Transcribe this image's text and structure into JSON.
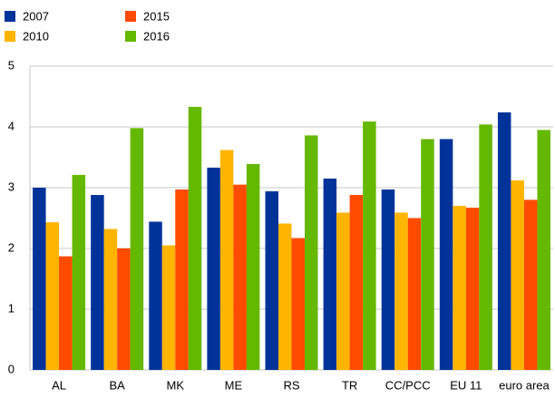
{
  "chart_data": {
    "type": "bar",
    "categories": [
      "AL",
      "BA",
      "MK",
      "ME",
      "RS",
      "TR",
      "CC/PCC",
      "EU 11",
      "euro area"
    ],
    "series": [
      {
        "name": "2007",
        "color": "#003399",
        "values": [
          3.0,
          2.88,
          2.44,
          3.33,
          2.94,
          3.15,
          2.97,
          3.8,
          4.24
        ]
      },
      {
        "name": "2010",
        "color": "#ffb400",
        "values": [
          2.43,
          2.32,
          2.05,
          3.62,
          2.41,
          2.59,
          2.59,
          2.7,
          3.12
        ]
      },
      {
        "name": "2015",
        "color": "#ff4b00",
        "values": [
          1.87,
          2.0,
          2.97,
          3.05,
          2.17,
          2.88,
          2.5,
          2.67,
          2.8
        ]
      },
      {
        "name": "2016",
        "color": "#65b800",
        "values": [
          3.21,
          3.98,
          4.33,
          3.39,
          3.86,
          4.09,
          3.8,
          4.04,
          3.95
        ]
      }
    ],
    "ylim": [
      0,
      5
    ],
    "yticks": [
      0,
      1,
      2,
      3,
      4,
      5
    ],
    "grid": true
  }
}
